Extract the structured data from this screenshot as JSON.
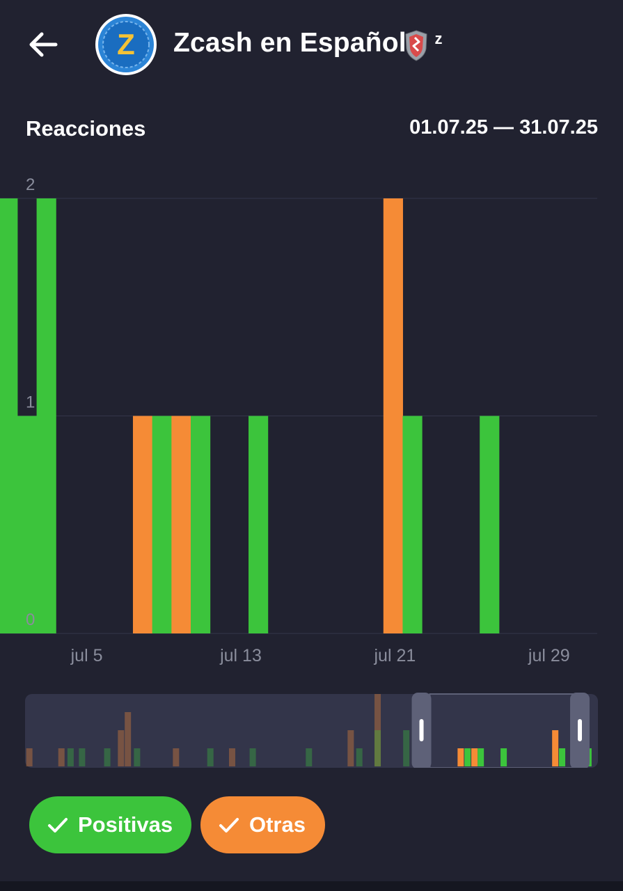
{
  "header": {
    "back_icon": "arrow-left-icon",
    "avatar_icon": "zcash-logo-icon",
    "avatar_letter": "Z",
    "title": "Zcash en Español",
    "badge_icon": "shield-sleep-icon",
    "badge_text": "z"
  },
  "section": {
    "title": "Reacciones",
    "date_range": "01.07.25 — 31.07.25"
  },
  "colors": {
    "background": "#212230",
    "positivas": "#3cc43c",
    "otras": "#f58b36",
    "axis_text": "#8a8d9c",
    "grid": "#34364a"
  },
  "legend": {
    "positivas_label": "Positivas",
    "otras_label": "Otras",
    "check_icon": "checkmark-icon"
  },
  "chart_data": {
    "type": "bar",
    "stacked": false,
    "title": "Reacciones",
    "xlabel": "",
    "ylabel": "",
    "ylim": [
      0,
      2
    ],
    "yticks": [
      "0",
      "1",
      "2"
    ],
    "grid": true,
    "x_ticks": [
      "jul 5",
      "jul 13",
      "jul 21",
      "jul 29"
    ],
    "visible_day_range": [
      1,
      32
    ],
    "tick_days": [
      5,
      13,
      21,
      29
    ],
    "bar_segments": [
      {
        "series": "Positivas",
        "day_start": 1,
        "day_end": 1.9,
        "value": 2
      },
      {
        "series": "Positivas",
        "day_start": 1.9,
        "day_end": 2.9,
        "value": 1
      },
      {
        "series": "Positivas",
        "day_start": 2.9,
        "day_end": 3.9,
        "value": 2
      },
      {
        "series": "Otras",
        "day_start": 7.9,
        "day_end": 8.9,
        "value": 1
      },
      {
        "series": "Positivas",
        "day_start": 8.9,
        "day_end": 9.9,
        "value": 1
      },
      {
        "series": "Otras",
        "day_start": 9.9,
        "day_end": 10.9,
        "value": 1
      },
      {
        "series": "Positivas",
        "day_start": 10.9,
        "day_end": 11.9,
        "value": 1
      },
      {
        "series": "Positivas",
        "day_start": 13.9,
        "day_end": 14.9,
        "value": 1
      },
      {
        "series": "Otras",
        "day_start": 20.9,
        "day_end": 21.9,
        "value": 2
      },
      {
        "series": "Positivas",
        "day_start": 21.9,
        "day_end": 22.9,
        "value": 1
      },
      {
        "series": "Positivas",
        "day_start": 25.9,
        "day_end": 26.9,
        "value": 1
      }
    ],
    "navigator": {
      "selected_fraction": [
        0.675,
        1.0
      ],
      "overview_bars": [
        {
          "series": "Otras",
          "pos": 0.002,
          "value": 1
        },
        {
          "series": "Otras",
          "pos": 0.058,
          "value": 1
        },
        {
          "series": "Positivas",
          "pos": 0.074,
          "value": 1
        },
        {
          "series": "Positivas",
          "pos": 0.094,
          "value": 1
        },
        {
          "series": "Positivas",
          "pos": 0.138,
          "value": 1
        },
        {
          "series": "Otras",
          "pos": 0.162,
          "value": 2
        },
        {
          "series": "Otras",
          "pos": 0.174,
          "value": 3
        },
        {
          "series": "Positivas",
          "pos": 0.19,
          "value": 1
        },
        {
          "series": "Otras",
          "pos": 0.258,
          "value": 1
        },
        {
          "series": "Positivas",
          "pos": 0.318,
          "value": 1
        },
        {
          "series": "Otras",
          "pos": 0.356,
          "value": 1
        },
        {
          "series": "Positivas",
          "pos": 0.392,
          "value": 1
        },
        {
          "series": "Positivas",
          "pos": 0.49,
          "value": 1
        },
        {
          "series": "Otras",
          "pos": 0.563,
          "value": 2
        },
        {
          "series": "Positivas",
          "pos": 0.578,
          "value": 1
        },
        {
          "series": "Otras",
          "pos": 0.61,
          "value": 4
        },
        {
          "series": "Positivas",
          "pos": 0.61,
          "value": 2
        },
        {
          "series": "Positivas",
          "pos": 0.66,
          "value": 2
        },
        {
          "series": "Otras",
          "pos": 0.755,
          "value": 1
        },
        {
          "series": "Positivas",
          "pos": 0.767,
          "value": 1
        },
        {
          "series": "Otras",
          "pos": 0.779,
          "value": 1
        },
        {
          "series": "Positivas",
          "pos": 0.79,
          "value": 1
        },
        {
          "series": "Positivas",
          "pos": 0.83,
          "value": 1
        },
        {
          "series": "Otras",
          "pos": 0.92,
          "value": 2
        },
        {
          "series": "Positivas",
          "pos": 0.932,
          "value": 1
        },
        {
          "series": "Positivas",
          "pos": 0.978,
          "value": 1
        }
      ]
    }
  }
}
